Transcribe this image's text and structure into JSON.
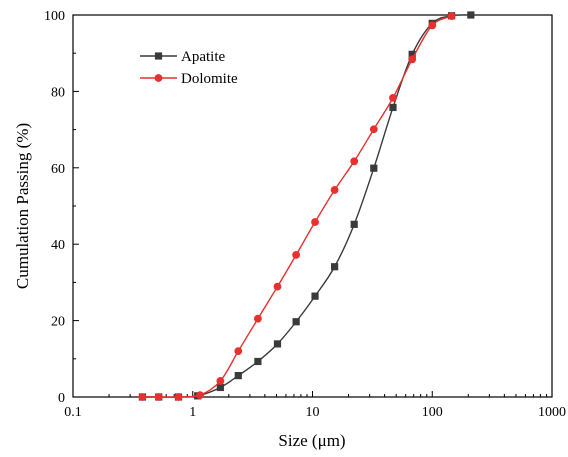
{
  "chart_data": {
    "type": "line",
    "xlabel": "Size (μm)",
    "ylabel": "Cumulation Passing (%)",
    "x_scale": "log",
    "xlim": [
      0.1,
      1000
    ],
    "ylim": [
      0,
      100
    ],
    "x_ticks": [
      {
        "value": 0.1,
        "label": "0.1"
      },
      {
        "value": 1,
        "label": "1"
      },
      {
        "value": 10,
        "label": "10"
      },
      {
        "value": 100,
        "label": "100"
      },
      {
        "value": 1000,
        "label": "1000"
      }
    ],
    "y_ticks": [
      {
        "value": 0,
        "label": "0"
      },
      {
        "value": 20,
        "label": "20"
      },
      {
        "value": 40,
        "label": "40"
      },
      {
        "value": 60,
        "label": "60"
      },
      {
        "value": 80,
        "label": "80"
      },
      {
        "value": 100,
        "label": "100"
      }
    ],
    "grid": false,
    "legend_position": "top-left",
    "series": [
      {
        "name": "Apatite",
        "color": "#3a3a3a",
        "marker": "square",
        "x": [
          0.38,
          0.52,
          0.76,
          1.1,
          1.7,
          2.4,
          3.5,
          5.1,
          7.3,
          10.5,
          15.3,
          22.3,
          32.5,
          47,
          68,
          100,
          145,
          210
        ],
        "y": [
          0,
          0,
          0,
          0.3,
          2.5,
          5.6,
          9.3,
          13.9,
          19.7,
          26.4,
          34.1,
          45.2,
          59.9,
          75.8,
          89.7,
          97.8,
          99.8,
          100
        ]
      },
      {
        "name": "Dolomite",
        "color": "#e8302f",
        "marker": "circle",
        "x": [
          0.38,
          0.52,
          0.76,
          1.15,
          1.7,
          2.4,
          3.5,
          5.1,
          7.3,
          10.5,
          15.3,
          22.3,
          32.5,
          47,
          68,
          100,
          145
        ],
        "y": [
          0,
          0,
          0,
          0.5,
          4.2,
          12,
          20.5,
          28.9,
          37.2,
          45.8,
          54.2,
          61.7,
          70.1,
          78.3,
          88.4,
          97.3,
          99.7
        ]
      }
    ]
  }
}
